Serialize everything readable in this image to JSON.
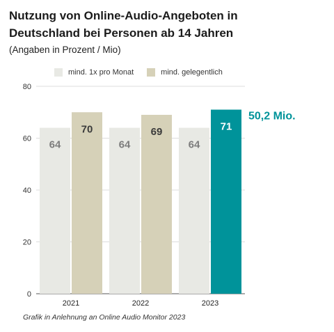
{
  "title": "Nutzung von Online-Audio-Angeboten in Deutschland bei Personen ab 14 Jahren",
  "subtitle": "(Angaben in Prozent / Mio)",
  "source": "Grafik in Anlehnung an Online Audio Monitor 2023",
  "colors": {
    "monthly": "#e8e9e4",
    "occasional": "#d6d1b8",
    "highlight": "#00939a",
    "label_light": "#7d7d7d",
    "label_dark": "#3b3b3b",
    "label_white": "#ffffff",
    "annotation": "#00939a"
  },
  "chart_data": {
    "type": "bar",
    "title": "Nutzung von Online-Audio-Angeboten in Deutschland bei Personen ab 14 Jahren",
    "subtitle": "(Angaben in Prozent / Mio)",
    "categories": [
      "2021",
      "2022",
      "2023"
    ],
    "series": [
      {
        "name": "mind. 1x pro Monat",
        "values": [
          64,
          64,
          64
        ]
      },
      {
        "name": "mind. gelegentlich",
        "values": [
          70,
          69,
          71
        ]
      }
    ],
    "highlight": {
      "series": "mind. gelegentlich",
      "category": "2023"
    },
    "annotation": {
      "category": "2023",
      "text": "50,2 Mio."
    },
    "ylim": [
      0,
      80
    ],
    "yticks": [
      0,
      20,
      40,
      60,
      80
    ],
    "grid": true,
    "legend": "top",
    "xlabel": "",
    "ylabel": ""
  }
}
